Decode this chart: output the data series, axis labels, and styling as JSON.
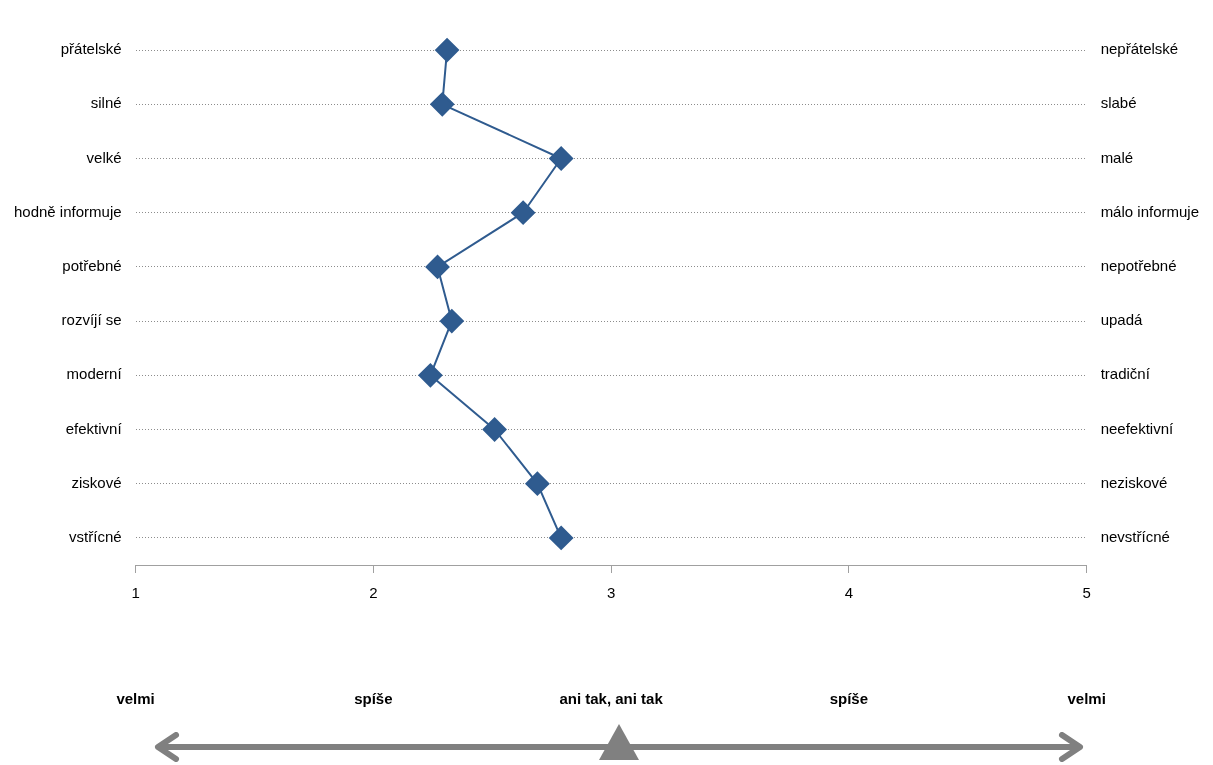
{
  "chart_data": {
    "type": "line",
    "orientation": "horizontal",
    "categories": [
      "přátelské",
      "silné",
      "velké",
      "hodně informuje",
      "potřebné",
      "rozvíjí se",
      "moderní",
      "efektivní",
      "ziskové",
      "vstřícné"
    ],
    "y2_categories": [
      "nepřátelské",
      "slabé",
      "malé",
      "málo informuje",
      "nepotřebné",
      "upadá",
      "tradiční",
      "neefektivní",
      "neziskové",
      "nevstřícné"
    ],
    "series": [
      {
        "color": "#2f5b8f",
        "values": [
          2.31,
          2.29,
          2.79,
          2.63,
          2.27,
          2.33,
          2.24,
          2.51,
          2.69,
          2.79
        ]
      }
    ],
    "xlim": [
      1,
      5
    ],
    "xticks": [
      1,
      2,
      3,
      4,
      5
    ],
    "grid": "y",
    "marker": "diamond",
    "line_style": "solid",
    "legend": false,
    "annotations": [
      "velmi",
      "spíše",
      "ani tak, ani tak",
      "spíše",
      "velmi"
    ]
  }
}
